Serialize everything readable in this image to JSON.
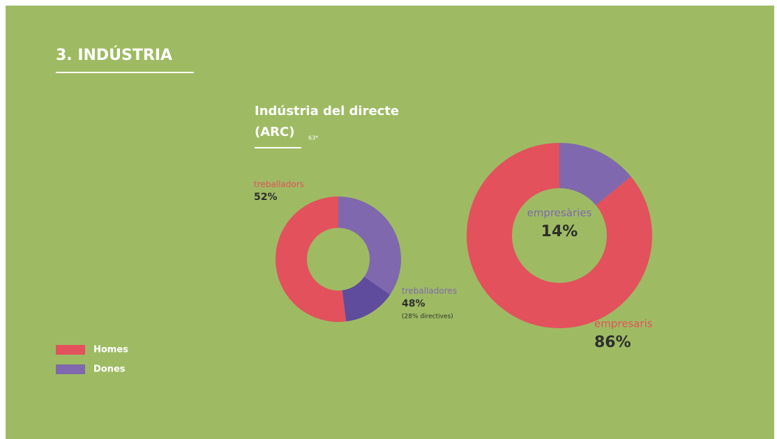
{
  "header": {
    "title": "3. INDÚSTRIA"
  },
  "legend": [
    {
      "name": "Homes",
      "color": "#e2515c"
    },
    {
      "name": "Dones",
      "color": "#7f68ad"
    }
  ],
  "chart_data": [
    {
      "type": "donut",
      "title": "Indústria del directe",
      "subtitle": "(ARC)",
      "note": "63*",
      "categories": [
        "treballadores",
        "treballadors"
      ],
      "values": [
        48,
        52
      ],
      "value_labels": [
        "48%",
        "52%"
      ],
      "colors": [
        "#7f68ad",
        "#e2515c"
      ],
      "highlight": {
        "label": "(28% directives)",
        "value": 28,
        "color": "#5f4c9c"
      }
    },
    {
      "type": "donut",
      "categories": [
        "empresàries",
        "empresaris"
      ],
      "values": [
        14,
        86
      ],
      "value_labels": [
        "14%",
        "86%"
      ],
      "colors": [
        "#7f68ad",
        "#e2515c"
      ]
    }
  ]
}
